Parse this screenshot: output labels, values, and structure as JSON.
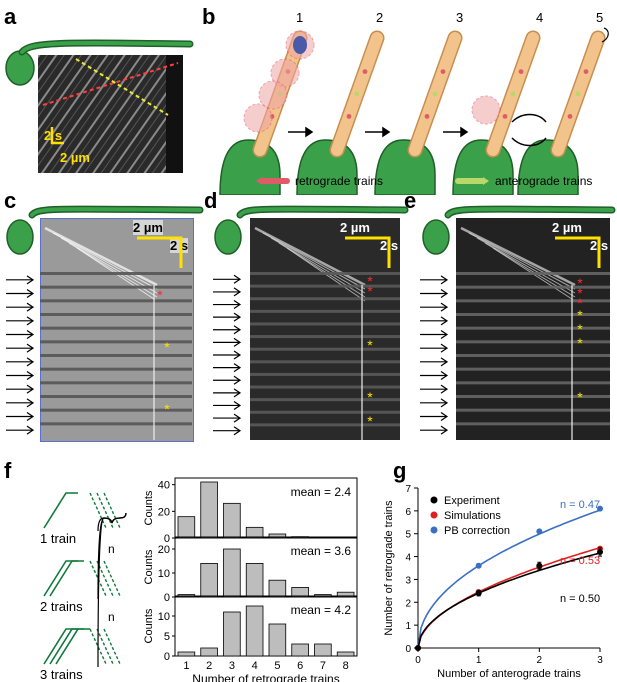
{
  "panels": {
    "a": "a",
    "b": "b",
    "c": "c",
    "d": "d",
    "e": "e",
    "f": "f",
    "g": "g"
  },
  "panel_a": {
    "scale_time": "2 s",
    "scale_space": "2 µm"
  },
  "panel_b": {
    "steps": [
      "1",
      "2",
      "3",
      "4",
      "5"
    ],
    "legend_retro": "retrograde trains",
    "legend_antero": "anterograde trains",
    "colors": {
      "cell": "#3aa14a",
      "flagellum": "#f2c48c",
      "retro": "#e05a6a",
      "antero": "#b8d86a",
      "highlight": "#f0a6a6",
      "nucleus": "#4b5aa8"
    }
  },
  "panel_c": {
    "scale_space": "2 µm",
    "scale_time": "2 s"
  },
  "panel_d": {
    "scale_space": "2 µm",
    "scale_time": "2 s"
  },
  "panel_e": {
    "scale_space": "2 µm",
    "scale_time": "2 s"
  },
  "panel_f": {
    "rows": [
      {
        "label": "1 train",
        "n": "n",
        "mean": "mean = 2.4"
      },
      {
        "label": "2 trains",
        "n": "n",
        "mean": "mean = 3.6"
      },
      {
        "label": "3 trains",
        "n": "n",
        "mean": "mean = 4.2"
      }
    ],
    "ylabel": "Counts",
    "xlabel": "Number of retrograde trains"
  },
  "panel_g": {
    "legend": [
      "Experiment",
      "Simulations",
      "PB correction"
    ],
    "n_labels": [
      "n = 0.47",
      "n = 0.53",
      "n = 0.50"
    ],
    "xlabel": "Number of anterograde trains",
    "ylabel": "Number of retrograde trains",
    "colors": {
      "experiment": "#000000",
      "simulations": "#e02020",
      "pb": "#3a6fc4"
    }
  },
  "chart_data": [
    {
      "type": "bar",
      "categories": [
        "1",
        "2",
        "3",
        "4",
        "5",
        "6",
        "7",
        "8"
      ],
      "series": [
        {
          "name": "1 train",
          "values": [
            16,
            42,
            26,
            8,
            3,
            1,
            0,
            0
          ]
        }
      ],
      "ylim": [
        0,
        45
      ],
      "yticks": [
        "0",
        "20",
        "40"
      ],
      "annotation": "mean = 2.4"
    },
    {
      "type": "bar",
      "categories": [
        "1",
        "2",
        "3",
        "4",
        "5",
        "6",
        "7",
        "8"
      ],
      "series": [
        {
          "name": "2 trains",
          "values": [
            1,
            14,
            20,
            14,
            7,
            4,
            1,
            2
          ]
        }
      ],
      "ylim": [
        0,
        25
      ],
      "yticks": [
        "0",
        "10",
        "20"
      ],
      "annotation": "mean = 3.6"
    },
    {
      "type": "bar",
      "categories": [
        "1",
        "2",
        "3",
        "4",
        "5",
        "6",
        "7",
        "8"
      ],
      "series": [
        {
          "name": "3 trains",
          "values": [
            1,
            2,
            11,
            12.5,
            8,
            3,
            3,
            1
          ]
        }
      ],
      "ylim": [
        0,
        15
      ],
      "yticks": [
        "0",
        "5",
        "10"
      ],
      "xlabel": "Number of retrograde trains",
      "ylabel": "Counts",
      "annotation": "mean = 4.2"
    },
    {
      "type": "line",
      "xlabel": "Number of anterograde trains",
      "ylabel": "Number of retrograde trains",
      "xlim": [
        0,
        3
      ],
      "ylim": [
        0,
        7
      ],
      "xticks": [
        "0",
        "1",
        "2",
        "3"
      ],
      "yticks": [
        "0",
        "1",
        "2",
        "3",
        "4",
        "5",
        "6",
        "7"
      ],
      "series": [
        {
          "name": "Experiment",
          "x": [
            0,
            1,
            2,
            3
          ],
          "y": [
            0,
            2.4,
            3.6,
            4.2
          ],
          "err": [
            0,
            0.12,
            0.15,
            0.18
          ],
          "n": "n = 0.50"
        },
        {
          "name": "Simulations",
          "x": [
            0,
            1,
            2,
            3
          ],
          "y": [
            0,
            2.45,
            3.55,
            4.35
          ],
          "n": "n = 0.53"
        },
        {
          "name": "PB correction",
          "x": [
            0,
            1,
            2,
            3
          ],
          "y": [
            0,
            3.6,
            5.1,
            6.1
          ],
          "n": "n = 0.47"
        }
      ]
    }
  ]
}
